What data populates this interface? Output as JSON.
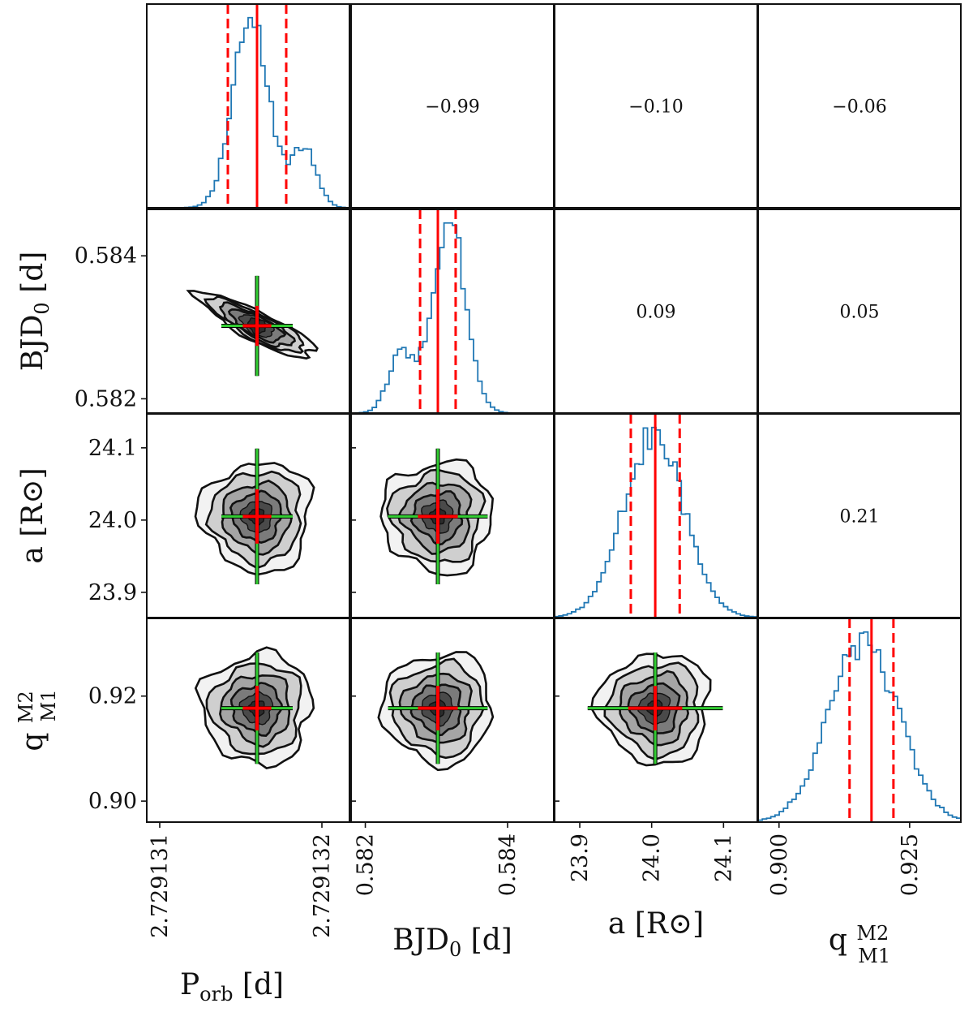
{
  "chart_data": {
    "type": "corner",
    "parameters": [
      {
        "name": "P_orb",
        "main": "P",
        "sub": "orb",
        "unit": "d",
        "range": [
          2.72913092,
          2.72913217
        ],
        "ticks": [
          2.729131,
          2.729132
        ],
        "tick_labels": [
          "2.729131",
          "2.729132"
        ],
        "tick_rotation": -90,
        "median": 2.7291316,
        "lo": 2.72913142,
        "hi": 2.72913178,
        "sigma": 1.1e-07
      },
      {
        "name": "BJD_0",
        "main": "BJD",
        "sub": "0",
        "unit": "d",
        "range": [
          0.5818,
          0.58465
        ],
        "ticks": [
          0.582,
          0.584
        ],
        "tick_labels": [
          "0.582",
          "0.584"
        ],
        "tick_rotation": -90,
        "median": 0.58302,
        "lo": 0.58277,
        "hi": 0.58327,
        "sigma": 0.00035
      },
      {
        "name": "a",
        "main": "a",
        "sub": "",
        "unit": "R⊙",
        "range": [
          23.865,
          24.147
        ],
        "ticks": [
          23.9,
          24.0,
          24.1
        ],
        "tick_labels": [
          "23.9",
          "24.0",
          "24.1"
        ],
        "tick_rotation": -90,
        "median": 24.005,
        "lo": 23.971,
        "hi": 24.039,
        "sigma": 0.047
      },
      {
        "name": "q",
        "main": "q",
        "sub": "",
        "frac_num": "M2",
        "frac_den": "M1",
        "unit": "",
        "range": [
          0.896,
          0.9348
        ],
        "ticks": [
          0.9,
          0.92
        ],
        "tick_labels": [
          "0.90",
          "0.92"
        ],
        "tick_labels_x": [
          "0.900",
          "0.925"
        ],
        "ticks_x": [
          0.9,
          0.925
        ],
        "tick_rotation": -90,
        "median": 0.9177,
        "lo": 0.9135,
        "hi": 0.9219,
        "sigma": 0.0053
      }
    ],
    "correlations": [
      {
        "row": 0,
        "col": 1,
        "value": "−0.99"
      },
      {
        "row": 0,
        "col": 2,
        "value": "−0.10"
      },
      {
        "row": 0,
        "col": 3,
        "value": "−0.06"
      },
      {
        "row": 1,
        "col": 2,
        "value": "0.09"
      },
      {
        "row": 1,
        "col": 3,
        "value": "0.05"
      },
      {
        "row": 2,
        "col": 3,
        "value": "0.21"
      }
    ],
    "colors": {
      "histogram": "#1f77b4",
      "median": "#ff0000",
      "quantile": "#ff0000",
      "cross_outer": "#32cd32",
      "cross_inner": "#ff0000",
      "contour_fills": [
        "#f2f2f2",
        "#cfcfcf",
        "#a5a5a5",
        "#7b7b7b",
        "#4a4a4a",
        "#2b2b2b"
      ]
    }
  }
}
